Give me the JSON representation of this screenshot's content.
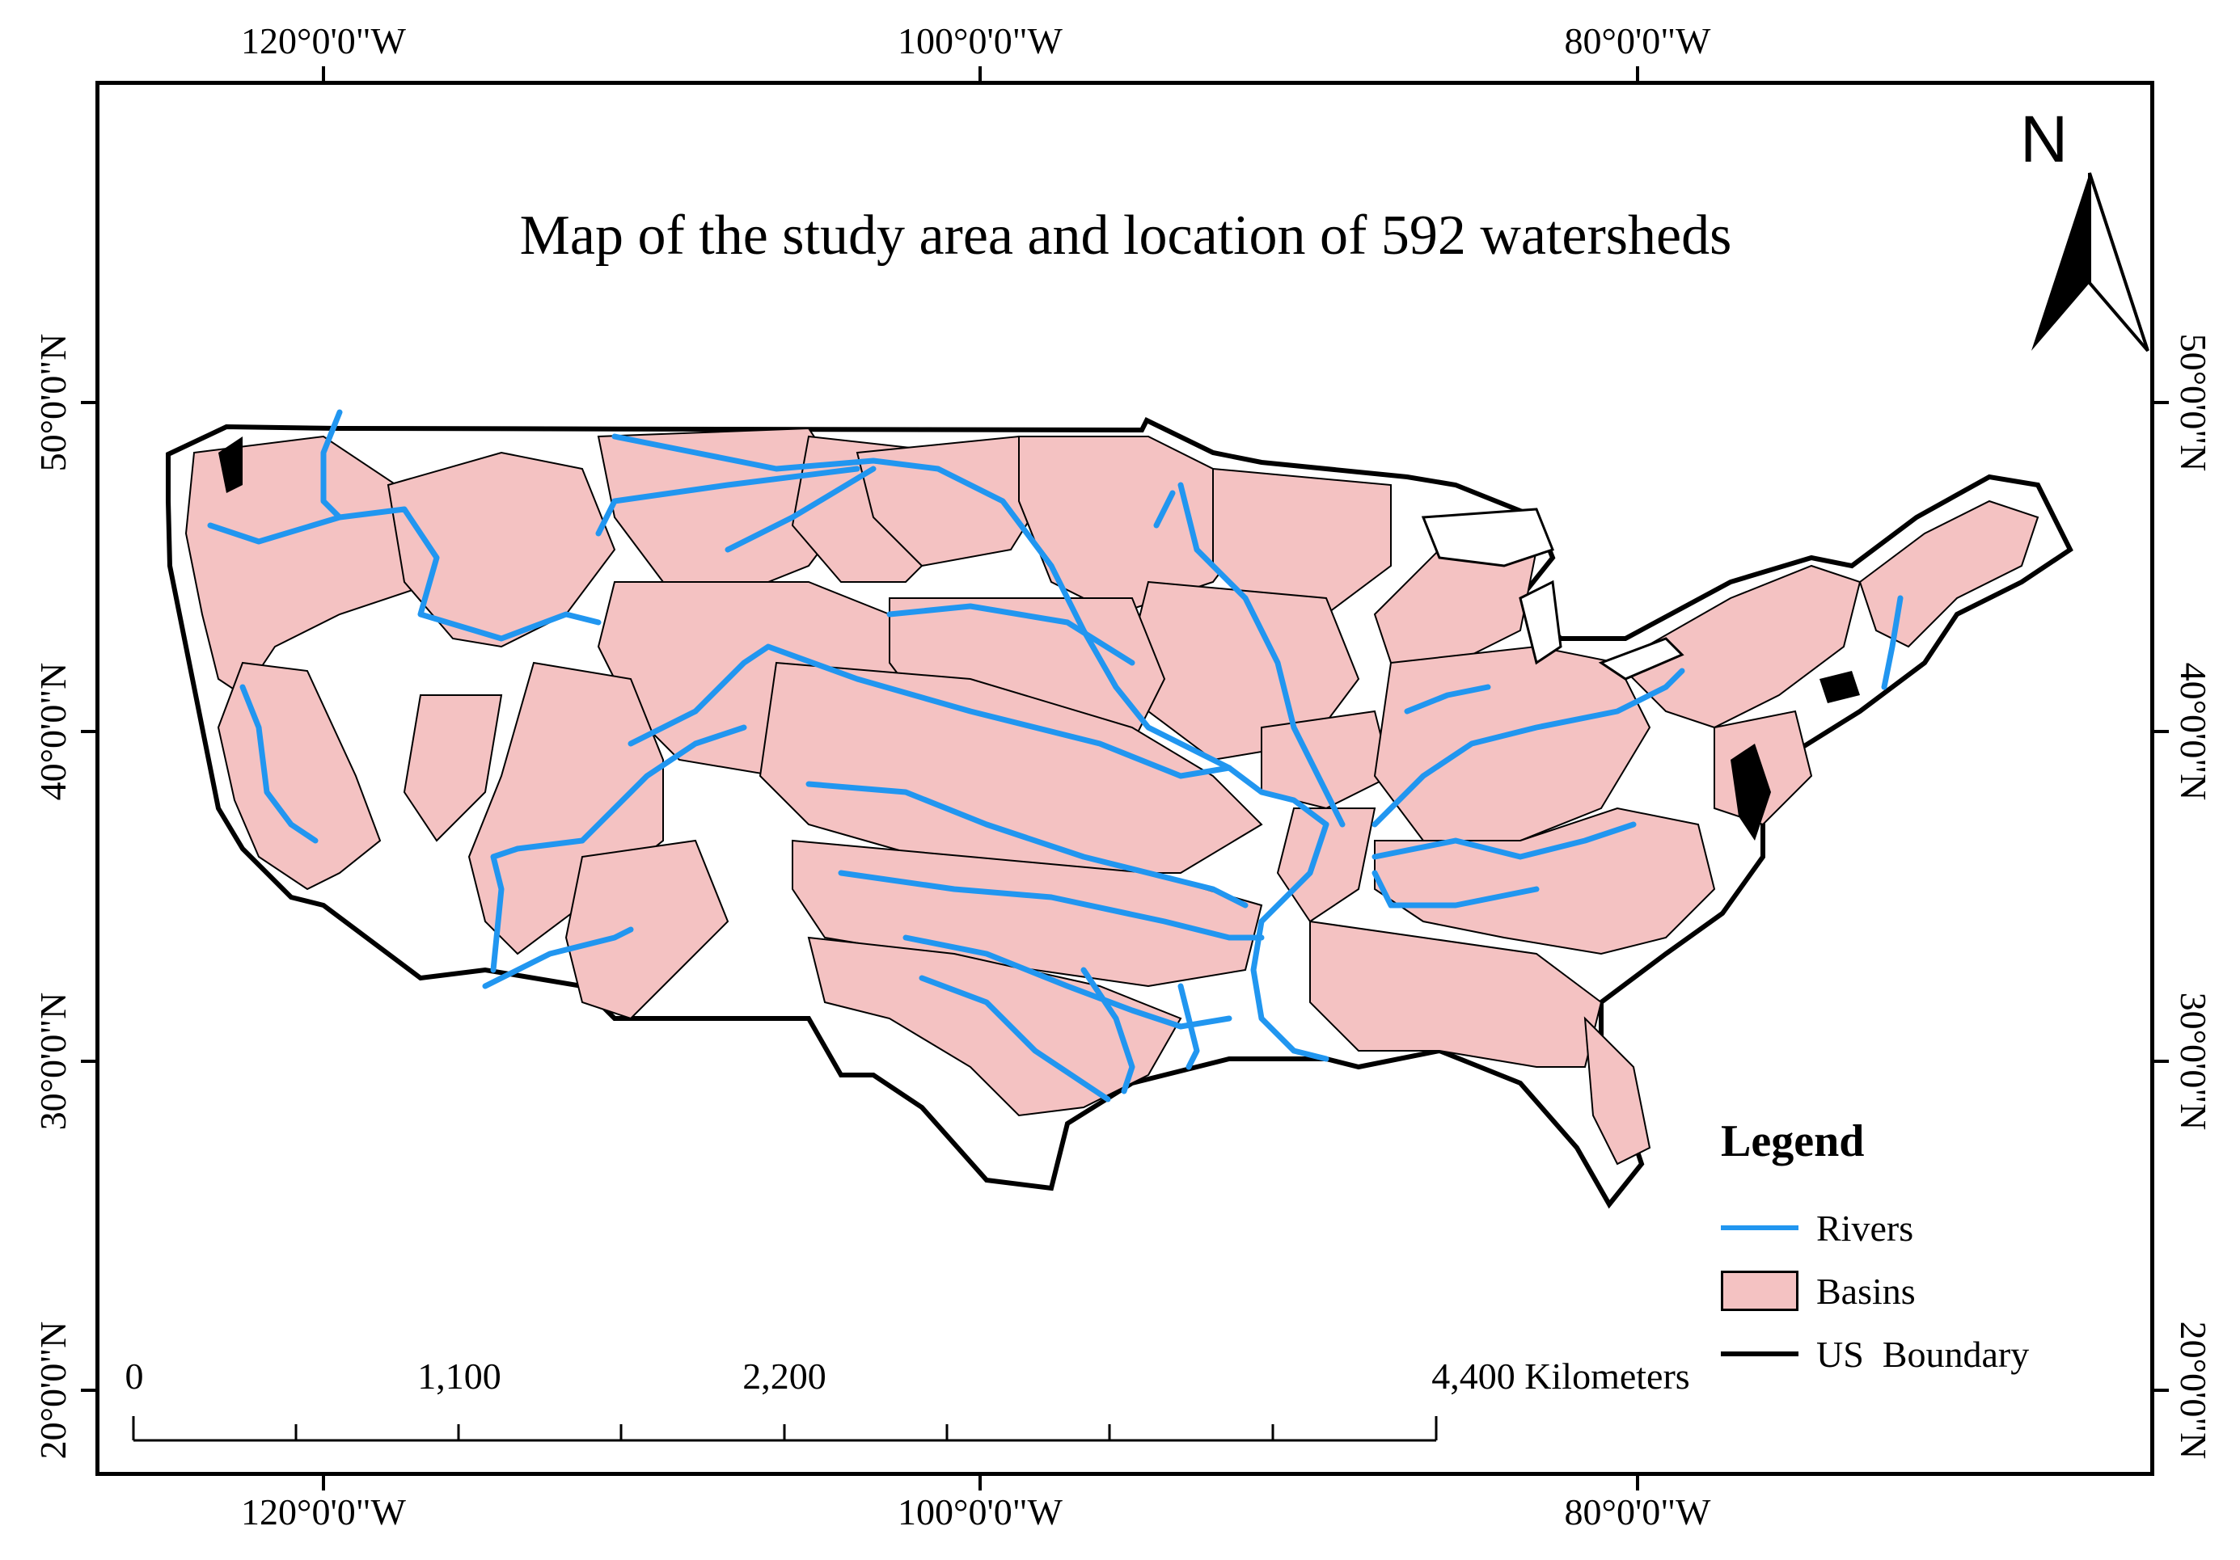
{
  "map": {
    "title": "Map of the study area and location of 592 watersheds",
    "graticule": {
      "longitude_labels": [
        "120°0'0\"W",
        "100°0'0\"W",
        "80°0'0\"W"
      ],
      "latitude_labels": [
        "50°0'0\"N",
        "40°0'0\"N",
        "30°0'0\"N",
        "20°0'0\"N"
      ]
    },
    "north_arrow": {
      "letter": "N",
      "icon": "north-arrow-icon"
    },
    "legend": {
      "title": "Legend",
      "items": [
        {
          "label": "Rivers",
          "symbol": "blue-line",
          "color": "#2196f0"
        },
        {
          "label": "Basins",
          "symbol": "pink-fill",
          "color": "#f4c2c2"
        },
        {
          "label": "US  Boundary",
          "symbol": "black-line",
          "color": "#000000"
        }
      ]
    },
    "scale_bar": {
      "labels": [
        "0",
        "1,100",
        "2,200",
        "4,400 Kilometers"
      ]
    },
    "colors": {
      "basins": "#f4c2c2",
      "rivers": "#2196f0",
      "boundary": "#000000",
      "background": "#ffffff"
    }
  }
}
